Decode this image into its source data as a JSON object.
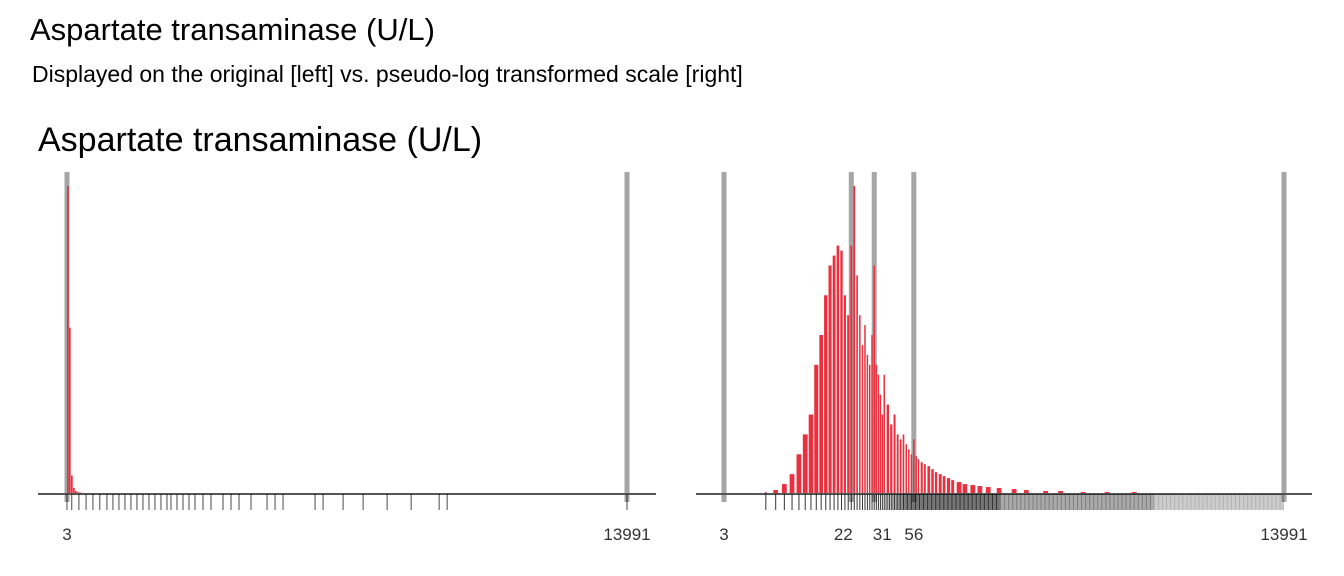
{
  "header": {
    "title": "Aspartate transaminase (U/L)",
    "subtitle": "Displayed on the original [left] vs. pseudo-log transformed scale [right]",
    "panel_title": "Aspartate transaminase (U/L)"
  },
  "colors": {
    "bars": "#e8303e",
    "reference_lines": "#a6a6a6",
    "rug": "#000000",
    "baseline": "#555555"
  },
  "chart_data": [
    {
      "type": "bar",
      "name": "original-scale histogram",
      "scale": "linear",
      "xlim": [
        3,
        13991
      ],
      "x_ticks": [
        3,
        13991
      ],
      "x_tick_labels": [
        "3",
        "13991"
      ],
      "reference_lines": [
        3,
        13991
      ],
      "bin_edges": [
        3,
        53,
        103,
        153,
        203,
        253,
        303,
        353,
        403,
        453,
        503,
        553,
        603,
        653,
        703
      ],
      "values": [
        1000,
        540,
        60,
        20,
        10,
        6,
        5,
        4,
        3,
        3,
        2,
        2,
        2,
        2
      ],
      "rug_values": [
        3,
        120,
        300,
        480,
        650,
        820,
        1000,
        1150,
        1300,
        1450,
        1600,
        1750,
        1900,
        2050,
        2200,
        2350,
        2500,
        2600,
        2750,
        2900,
        3050,
        3200,
        3400,
        3600,
        3900,
        4100,
        4300,
        4600,
        5000,
        5200,
        5400,
        6200,
        6400,
        6900,
        7400,
        8000,
        8600,
        9300,
        9500,
        13991
      ],
      "axis_visible": false,
      "grid": false
    },
    {
      "type": "bar",
      "name": "pseudo-log histogram",
      "scale": "pseudo-log",
      "xlim": [
        3,
        13991
      ],
      "x_ticks": [
        3,
        22,
        31,
        56,
        13991
      ],
      "x_tick_labels": [
        "3",
        "22",
        "31",
        "56",
        "13991"
      ],
      "reference_lines": [
        3,
        22,
        31,
        56,
        13991
      ],
      "x": [
        6,
        7,
        8,
        9,
        10,
        11,
        12,
        13,
        14,
        15,
        16,
        17,
        18,
        19,
        20,
        21,
        22,
        23,
        24,
        25,
        26,
        27,
        28,
        29,
        30,
        31,
        32,
        33,
        34,
        35,
        36,
        38,
        40,
        42,
        44,
        46,
        48,
        50,
        52,
        54,
        56,
        58,
        60,
        63,
        66,
        70,
        74,
        78,
        83,
        88,
        94,
        100,
        110,
        120,
        135,
        150,
        170,
        200,
        250,
        300,
        400,
        500,
        700,
        1000,
        1500,
        2000,
        3000,
        5000,
        8000,
        13991
      ],
      "values": [
        2,
        4,
        10,
        20,
        40,
        60,
        80,
        130,
        160,
        200,
        230,
        240,
        250,
        245,
        200,
        180,
        250,
        310,
        220,
        180,
        150,
        170,
        140,
        130,
        160,
        230,
        130,
        120,
        100,
        80,
        120,
        90,
        70,
        80,
        60,
        55,
        60,
        50,
        45,
        40,
        55,
        38,
        35,
        32,
        30,
        28,
        25,
        22,
        20,
        18,
        16,
        14,
        12,
        10,
        9,
        8,
        7,
        6,
        5,
        4,
        3,
        3,
        2,
        2,
        2,
        1,
        1,
        1,
        1,
        1
      ],
      "axis_visible": false,
      "grid": false
    }
  ]
}
